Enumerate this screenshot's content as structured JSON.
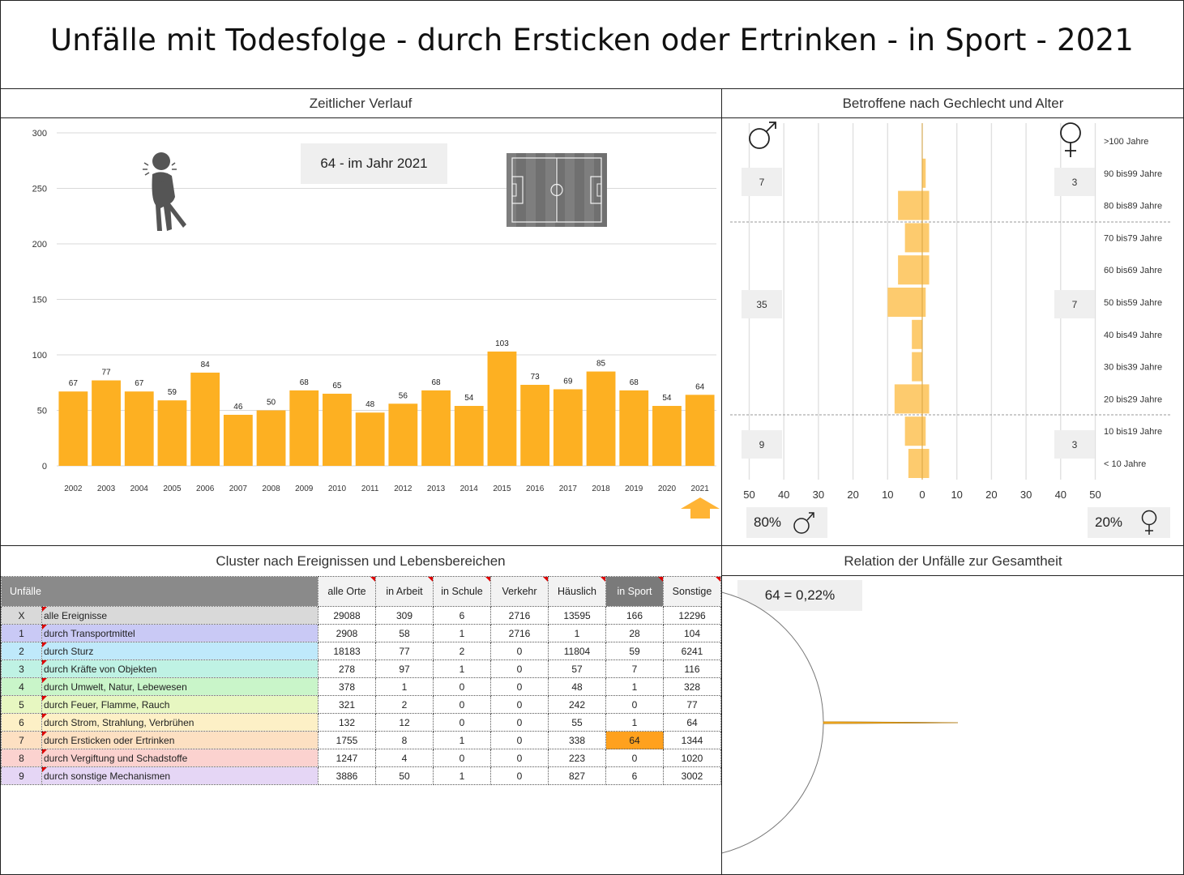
{
  "title": "Unfälle mit Todesfolge - durch Ersticken oder Ertrinken - in Sport - 2021",
  "colors": {
    "bar": "#FDB022",
    "bar_light": "#FDCB6E",
    "highlight": "#FFA11E",
    "header": "#7a7a7a"
  },
  "timeline": {
    "section_title": "Zeitlicher Verlauf",
    "callout": "64 - im Jahr 2021",
    "icons": [
      "choking-person-icon",
      "football-field-icon",
      "up-arrow-icon"
    ]
  },
  "chart_data": [
    {
      "type": "bar",
      "categories": [
        "2002",
        "2003",
        "2004",
        "2005",
        "2006",
        "2007",
        "2008",
        "2009",
        "2010",
        "2011",
        "2012",
        "2013",
        "2014",
        "2015",
        "2016",
        "2017",
        "2018",
        "2019",
        "2020",
        "2021"
      ],
      "values": [
        67,
        77,
        67,
        59,
        84,
        46,
        50,
        68,
        65,
        48,
        56,
        68,
        54,
        103,
        73,
        69,
        85,
        68,
        54,
        64
      ],
      "ylim": [
        0,
        300
      ],
      "yticks": [
        "0",
        "50",
        "100",
        "150",
        "200",
        "250",
        "300"
      ],
      "grid": true
    },
    {
      "type": "bar",
      "orientation": "horizontal",
      "age_groups": [
        ">100 Jahre",
        "90 bis99 Jahre",
        "80 bis89 Jahre",
        "70 bis79 Jahre",
        "60 bis69 Jahre",
        "50 bis59 Jahre",
        "40 bis49 Jahre",
        "30 bis39 Jahre",
        "20 bis29 Jahre",
        "10 bis19 Jahre",
        "< 10 Jahre"
      ],
      "series": [
        {
          "values": [
            0,
            0,
            7,
            5,
            7,
            10,
            3,
            3,
            8,
            5,
            4
          ]
        },
        {
          "values": [
            0,
            1,
            2,
            2,
            2,
            1,
            0,
            0,
            2,
            1,
            2
          ]
        }
      ],
      "xticks": [
        "50",
        "40",
        "30",
        "20",
        "10",
        "0",
        "10",
        "20",
        "30",
        "40",
        "50"
      ],
      "xlim": [
        -50,
        50
      ]
    },
    {
      "type": "pie",
      "slices": [
        {
          "value": 64
        },
        {
          "value": 29024
        }
      ]
    }
  ],
  "pyramid": {
    "section_title": "Betroffene nach Gechlecht und Alter",
    "group_boxes_left": [
      "7",
      "35",
      "9"
    ],
    "group_boxes_right": [
      "3",
      "7",
      "3"
    ],
    "male_pct": "80%",
    "female_pct": "20%",
    "male_symbol": "♂",
    "female_symbol": "♀"
  },
  "cluster": {
    "section_title": "Cluster nach Ereignissen und Lebensbereichen",
    "headers": [
      "Unfälle",
      "alle Orte",
      "in Arbeit",
      "in Schule",
      "Verkehr",
      "Häuslich",
      "in Sport",
      "Sonstige"
    ],
    "rows": [
      {
        "idx": "X",
        "label": "alle Ereignisse",
        "color": "#d9d9d9",
        "vals": [
          "29088",
          "309",
          "6",
          "2716",
          "13595",
          "166",
          "12296"
        ]
      },
      {
        "idx": "1",
        "label": "durch Transportmittel",
        "color": "#c9c9f5",
        "vals": [
          "2908",
          "58",
          "1",
          "2716",
          "1",
          "28",
          "104"
        ]
      },
      {
        "idx": "2",
        "label": "durch Sturz",
        "color": "#bfe9fb",
        "vals": [
          "18183",
          "77",
          "2",
          "0",
          "11804",
          "59",
          "6241"
        ]
      },
      {
        "idx": "3",
        "label": "durch Kräfte von Objekten",
        "color": "#bff2e4",
        "vals": [
          "278",
          "97",
          "1",
          "0",
          "57",
          "7",
          "116"
        ]
      },
      {
        "idx": "4",
        "label": "durch Umwelt, Natur, Lebewesen",
        "color": "#c9f5c9",
        "vals": [
          "378",
          "1",
          "0",
          "0",
          "48",
          "1",
          "328"
        ]
      },
      {
        "idx": "5",
        "label": "durch Feuer, Flamme, Rauch",
        "color": "#e7f7c1",
        "vals": [
          "321",
          "2",
          "0",
          "0",
          "242",
          "0",
          "77"
        ]
      },
      {
        "idx": "6",
        "label": "durch Strom, Strahlung, Verbrühen",
        "color": "#fdf0c6",
        "vals": [
          "132",
          "12",
          "0",
          "0",
          "55",
          "1",
          "64"
        ]
      },
      {
        "idx": "7",
        "label": "durch Ersticken oder Ertrinken",
        "color": "#fde0c2",
        "vals": [
          "1755",
          "8",
          "1",
          "0",
          "338",
          "64",
          "1344"
        ]
      },
      {
        "idx": "8",
        "label": "durch Vergiftung und Schadstoffe",
        "color": "#fbd2cf",
        "vals": [
          "1247",
          "4",
          "0",
          "0",
          "223",
          "0",
          "1020"
        ]
      },
      {
        "idx": "9",
        "label": "durch sonstige Mechanismen",
        "color": "#e5d6f5",
        "vals": [
          "3886",
          "50",
          "1",
          "0",
          "827",
          "6",
          "3002"
        ]
      }
    ]
  },
  "relation": {
    "section_title": "Relation der Unfälle zur Gesamtheit",
    "callout": "64 =  0,22%"
  }
}
